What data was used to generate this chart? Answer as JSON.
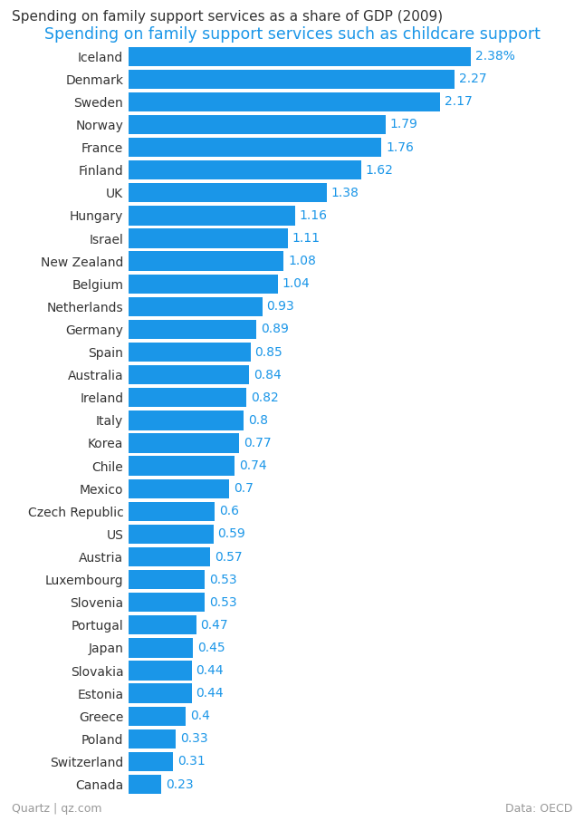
{
  "title": "Spending on family support services as a share of GDP (2009)",
  "subtitle": "Spending on family support services such as childcare support",
  "footer_left": "Quartz | qz.com",
  "footer_right": "Data: OECD",
  "bar_color": "#1a96e8",
  "background_color": "#ffffff",
  "title_color": "#333333",
  "subtitle_color": "#1a96e8",
  "value_color": "#1a96e8",
  "footer_color": "#999999",
  "categories": [
    "Iceland",
    "Denmark",
    "Sweden",
    "Norway",
    "France",
    "Finland",
    "UK",
    "Hungary",
    "Israel",
    "New Zealand",
    "Belgium",
    "Netherlands",
    "Germany",
    "Spain",
    "Australia",
    "Ireland",
    "Italy",
    "Korea",
    "Chile",
    "Mexico",
    "Czech Republic",
    "US",
    "Austria",
    "Luxembourg",
    "Slovenia",
    "Portugal",
    "Japan",
    "Slovakia",
    "Estonia",
    "Greece",
    "Poland",
    "Switzerland",
    "Canada"
  ],
  "values": [
    2.38,
    2.27,
    2.17,
    1.79,
    1.76,
    1.62,
    1.38,
    1.16,
    1.11,
    1.08,
    1.04,
    0.93,
    0.89,
    0.85,
    0.84,
    0.82,
    0.8,
    0.77,
    0.74,
    0.7,
    0.6,
    0.59,
    0.57,
    0.53,
    0.53,
    0.47,
    0.45,
    0.44,
    0.44,
    0.4,
    0.33,
    0.31,
    0.23
  ],
  "value_labels": [
    "2.38%",
    "2.27",
    "2.17",
    "1.79",
    "1.76",
    "1.62",
    "1.38",
    "1.16",
    "1.11",
    "1.08",
    "1.04",
    "0.93",
    "0.89",
    "0.85",
    "0.84",
    "0.82",
    "0.8",
    "0.77",
    "0.74",
    "0.7",
    "0.6",
    "0.59",
    "0.57",
    "0.53",
    "0.53",
    "0.47",
    "0.45",
    "0.44",
    "0.44",
    "0.4",
    "0.33",
    "0.31",
    "0.23"
  ],
  "xlim": [
    0,
    2.6
  ],
  "title_fontsize": 11,
  "subtitle_fontsize": 12.5,
  "label_fontsize": 10,
  "value_fontsize": 10,
  "footer_fontsize": 9
}
